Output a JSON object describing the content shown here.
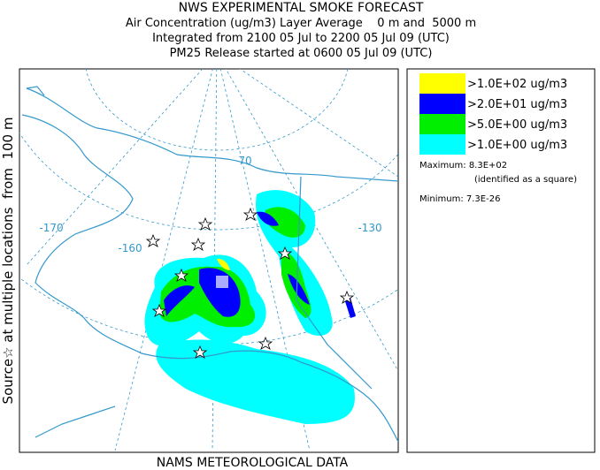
{
  "header": {
    "title": "NWS EXPERIMENTAL SMOKE FORECAST",
    "lines": [
      "Air Concentration (ug/m3) Layer Average    0 m and  5000 m",
      "Integrated from 2100 05 Jul to 2200 05 Jul 09 (UTC)",
      "PM25 Release started at 0600 05 Jul 09 (UTC)"
    ]
  },
  "side_label": "Source☆ at multiple locations  from  100 m",
  "footer": "NAMS METEOROLOGICAL DATA",
  "map": {
    "graticule_labels": [
      "-170",
      "-160",
      "70",
      "-130"
    ]
  },
  "legend": {
    "items": [
      {
        "label": ">1.0E+02 ug/m3",
        "color": "#ffff00"
      },
      {
        "label": ">2.0E+01 ug/m3",
        "color": "#0000ff"
      },
      {
        "label": ">5.0E+00 ug/m3",
        "color": "#00ee00"
      },
      {
        "label": ">1.0E+00 ug/m3",
        "color": "#00ffff"
      }
    ],
    "maximum": "Maximum: 8.3E+02",
    "maximum_note": "(identified as a square)",
    "minimum": "Minimum: 7.3E-26"
  }
}
